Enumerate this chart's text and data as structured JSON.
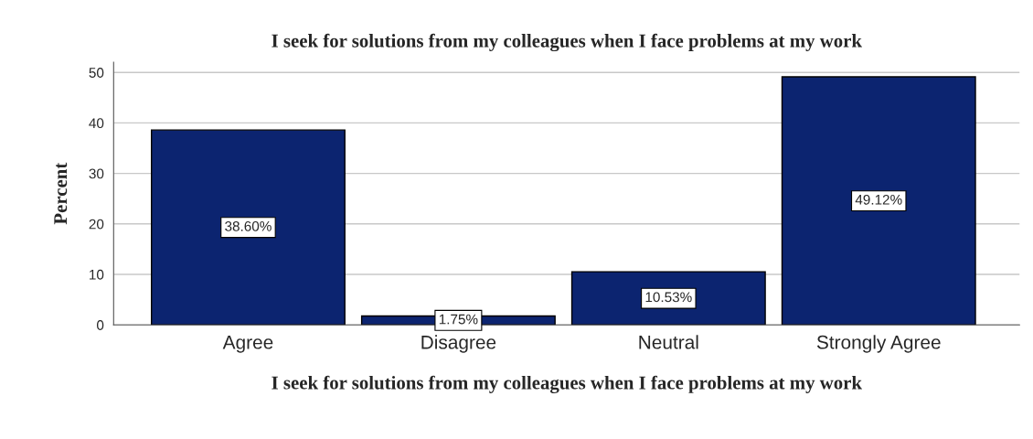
{
  "chart_data": {
    "type": "bar",
    "title": "I seek for solutions from my colleagues when I face problems at my work",
    "xlabel": "I seek for solutions from my colleagues when I face problems at my work",
    "ylabel": "Percent",
    "categories": [
      "Agree",
      "Disagree",
      "Neutral",
      "Strongly Agree"
    ],
    "values": [
      38.6,
      1.75,
      10.53,
      49.12
    ],
    "value_labels": [
      "38.60%",
      "1.75%",
      "10.53%",
      "49.12%"
    ],
    "color": "#0c2470",
    "ylim": [
      0,
      52
    ],
    "yticks": [
      0,
      10,
      20,
      30,
      40,
      50
    ],
    "grid": "y"
  }
}
